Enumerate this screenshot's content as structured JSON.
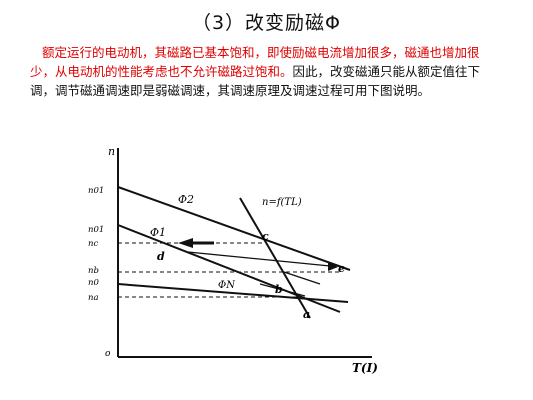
{
  "title": "（3）改变励磁Φ",
  "paragraph": {
    "red_text": "额定运行的电动机，其磁路已基本饱和，即使励磁电流增加很多，磁通也增加很少，从电动机的性能考虑也不允许磁路过饱和。",
    "black_text": "因此，改变磁通只能从额定值往下调，调节磁通调速即是弱磁调速，其调速原理及调速过程可用下图说明。"
  },
  "figure": {
    "axis_y_label": "n",
    "axis_x_label": "T(I)",
    "origin_label": "o",
    "y_ticks": [
      "n01",
      "n01",
      "nc",
      "nb",
      "n0",
      "na"
    ],
    "curve_labels": {
      "phi2": "Φ2",
      "phi1": "Φ1",
      "phiN": "ΦN",
      "load": "n=f(TL)"
    },
    "point_labels": [
      "c",
      "d",
      "b",
      "e",
      "a"
    ],
    "colors": {
      "ink": "#111111",
      "text_red": "#e00000"
    }
  }
}
